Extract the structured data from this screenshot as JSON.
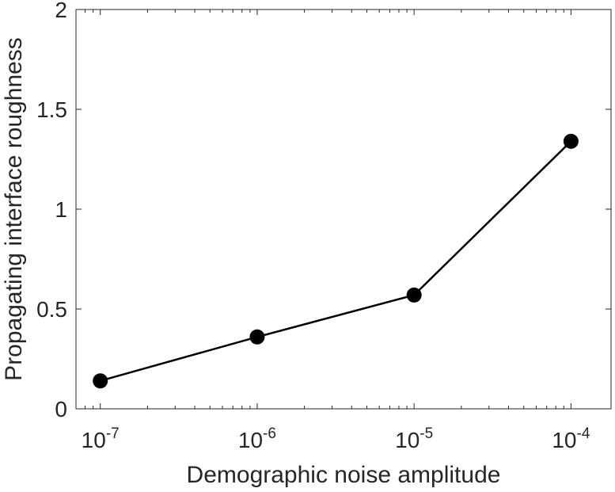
{
  "chart_data": {
    "type": "line",
    "title": "",
    "xlabel": "Demographic noise amplitude",
    "ylabel": "Propagating interface roughness",
    "xscale": "log",
    "xlim": [
      7e-08,
      0.00018
    ],
    "ylim": [
      0,
      2
    ],
    "x_ticks": [
      {
        "value": 1e-07,
        "base": "10",
        "exponent": "-7"
      },
      {
        "value": 1e-06,
        "base": "10",
        "exponent": "-6"
      },
      {
        "value": 1e-05,
        "base": "10",
        "exponent": "-5"
      },
      {
        "value": 0.0001,
        "base": "10",
        "exponent": "-4"
      }
    ],
    "y_ticks": [
      {
        "value": 0,
        "label": "0"
      },
      {
        "value": 0.5,
        "label": "0.5"
      },
      {
        "value": 1,
        "label": "1"
      },
      {
        "value": 1.5,
        "label": "1.5"
      },
      {
        "value": 2,
        "label": "2"
      }
    ],
    "grid": false,
    "box": true,
    "series": [
      {
        "color": "#000000",
        "marker": "circle",
        "x": [
          1e-07,
          1e-06,
          1e-05,
          0.0001
        ],
        "y": [
          0.14,
          0.36,
          0.57,
          1.34
        ]
      }
    ]
  }
}
